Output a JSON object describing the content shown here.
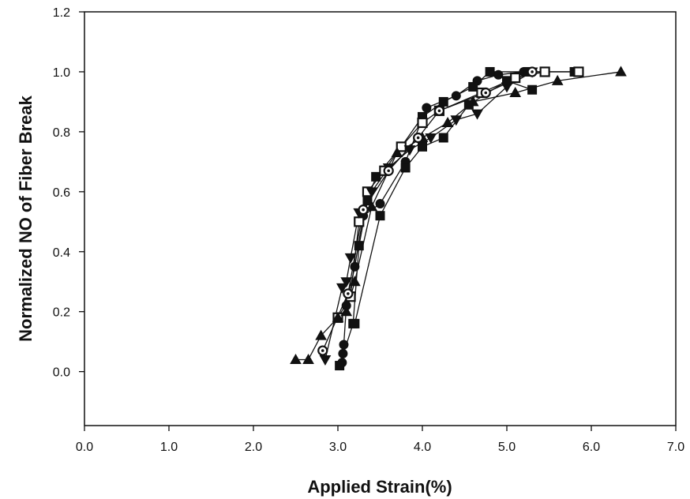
{
  "chart_data": {
    "type": "scatter",
    "title": "",
    "xlabel": "Applied  Strain(%)",
    "ylabel": "Normalized  NO  of  Fiber Break",
    "xlim": [
      0.0,
      7.0
    ],
    "ylim": [
      -0.18,
      1.2
    ],
    "x_ticks": [
      0.0,
      1.0,
      2.0,
      3.0,
      4.0,
      5.0,
      6.0,
      7.0
    ],
    "x_tick_labels": [
      "0.0",
      "1.0",
      "2.0",
      "3.0",
      "4.0",
      "5.0",
      "6.0",
      "7.0"
    ],
    "y_ticks": [
      0.0,
      0.2,
      0.4,
      0.6,
      0.8,
      1.0,
      1.2
    ],
    "y_tick_labels": [
      "0.0",
      "0.2",
      "0.4",
      "0.6",
      "0.8",
      "1.0",
      "1.2"
    ],
    "grid": false,
    "legend": "none",
    "series": [
      {
        "marker": "circle",
        "x": [
          3.05,
          3.06,
          3.07,
          3.1,
          3.2,
          3.3,
          3.5,
          3.8,
          4.05,
          4.4,
          4.65,
          4.9,
          5.2,
          5.3,
          5.45
        ],
        "y": [
          0.03,
          0.06,
          0.09,
          0.22,
          0.35,
          0.52,
          0.56,
          0.7,
          0.88,
          0.92,
          0.97,
          0.99,
          1.0,
          1.0,
          1.0
        ]
      },
      {
        "marker": "filled-square",
        "x": [
          3.02,
          3.18,
          3.25,
          3.35,
          3.45,
          3.75,
          4.0,
          4.25,
          4.6,
          4.8,
          5.25,
          5.8
        ],
        "y": [
          0.02,
          0.16,
          0.42,
          0.57,
          0.65,
          0.75,
          0.85,
          0.9,
          0.95,
          1.0,
          1.0,
          1.0
        ]
      },
      {
        "marker": "open-square",
        "x": [
          3.0,
          3.15,
          3.25,
          3.35,
          3.55,
          3.75,
          4.0,
          4.2,
          4.7,
          5.1,
          5.45,
          5.85
        ],
        "y": [
          0.18,
          0.25,
          0.5,
          0.6,
          0.67,
          0.75,
          0.83,
          0.87,
          0.93,
          0.98,
          1.0,
          1.0
        ]
      },
      {
        "marker": "triangle-up",
        "x": [
          2.5,
          2.65,
          2.8,
          3.0,
          3.1,
          3.2,
          3.4,
          3.7,
          4.0,
          4.3,
          4.6,
          5.1,
          5.6,
          6.35
        ],
        "y": [
          0.04,
          0.04,
          0.12,
          0.18,
          0.2,
          0.3,
          0.55,
          0.73,
          0.78,
          0.83,
          0.9,
          0.93,
          0.97,
          1.0
        ]
      },
      {
        "marker": "triangle-down",
        "x": [
          2.85,
          3.05,
          3.1,
          3.15,
          3.25,
          3.4,
          3.6,
          3.85,
          4.1,
          4.4,
          4.65,
          5.0,
          5.3
        ],
        "y": [
          0.04,
          0.28,
          0.3,
          0.38,
          0.53,
          0.6,
          0.68,
          0.74,
          0.78,
          0.84,
          0.86,
          0.95,
          1.0
        ]
      },
      {
        "marker": "open-circle",
        "x": [
          2.82,
          3.12,
          3.3,
          3.6,
          3.95,
          4.2,
          4.75,
          5.3
        ],
        "y": [
          0.07,
          0.26,
          0.54,
          0.67,
          0.78,
          0.87,
          0.93,
          1.0
        ]
      },
      {
        "marker": "filled-square",
        "x": [
          3.2,
          3.5,
          3.8,
          4.0,
          4.25,
          4.55,
          5.0,
          5.3
        ],
        "y": [
          0.16,
          0.52,
          0.68,
          0.75,
          0.78,
          0.89,
          0.97,
          0.94
        ]
      }
    ]
  }
}
